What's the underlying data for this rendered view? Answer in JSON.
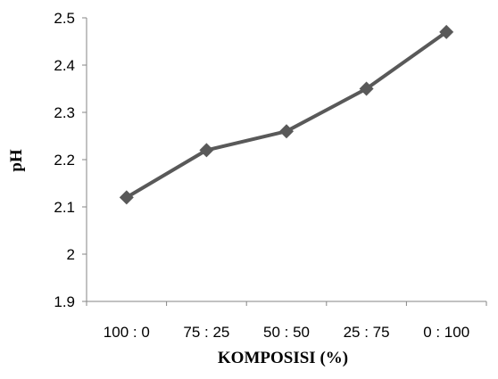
{
  "chart_data": {
    "type": "line",
    "title": "",
    "xlabel": "KOMPOSISI (%)",
    "ylabel": "pH",
    "categories": [
      "100 : 0",
      "75 : 25",
      "50 : 50",
      "25 : 75",
      "0 : 100"
    ],
    "series": [
      {
        "values": [
          2.12,
          2.22,
          2.26,
          2.35,
          2.47
        ]
      }
    ],
    "ylim": [
      1.9,
      2.5
    ],
    "yticks": [
      "1.9",
      "2",
      "2.1",
      "2.2",
      "2.3",
      "2.4",
      "2.5"
    ],
    "marker": "diamond",
    "grid": false,
    "legend": "none",
    "colors": {
      "series": "#595959",
      "axis": "#868686"
    }
  }
}
